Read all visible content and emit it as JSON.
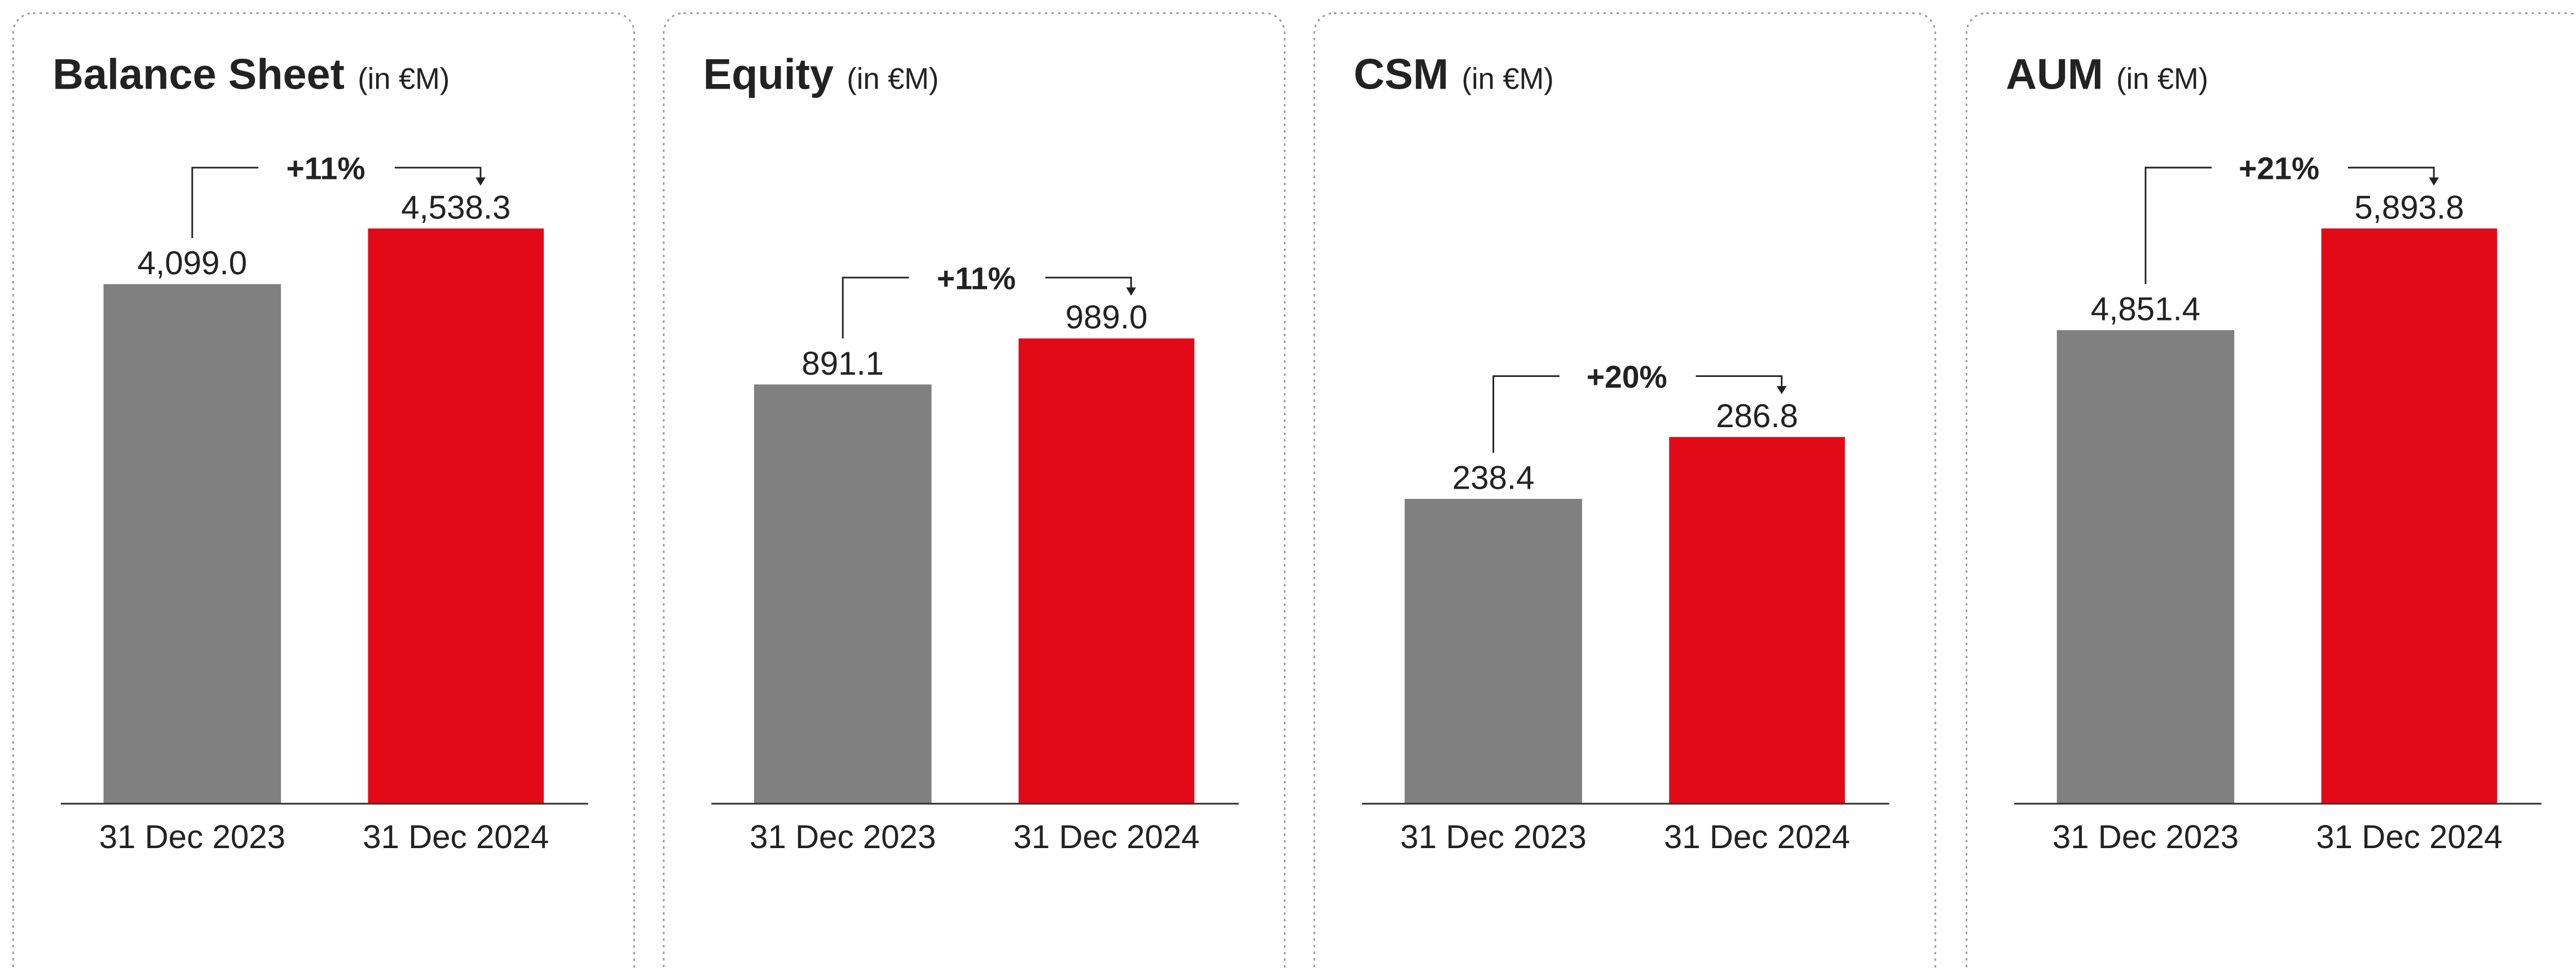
{
  "chart_data": [
    {
      "type": "bar",
      "title": "Balance Sheet",
      "subtitle": "(in €M)",
      "annotation": "+11%",
      "categories": [
        "31 Dec 2023",
        "31 Dec 2024"
      ],
      "values": [
        4099.0,
        4538.3
      ],
      "value_labels": [
        "4,099.0",
        "4,538.3"
      ],
      "colors": [
        "#808080",
        "#e30a18"
      ],
      "ylim": [
        0,
        5044
      ]
    },
    {
      "type": "bar",
      "title": "Equity",
      "subtitle": "(in €M)",
      "annotation": "+11%",
      "categories": [
        "31 Dec 2023",
        "31 Dec 2024"
      ],
      "values": [
        891.1,
        989.0
      ],
      "value_labels": [
        "891.1",
        "989.0"
      ],
      "colors": [
        "#808080",
        "#e30a18"
      ],
      "ylim": [
        0,
        1359
      ]
    },
    {
      "type": "bar",
      "title": "CSM",
      "subtitle": "(in €M)",
      "annotation": "+20%",
      "categories": [
        "31 Dec 2023",
        "31 Dec 2024"
      ],
      "values": [
        238.4,
        286.8
      ],
      "value_labels": [
        "238.4",
        "286.8"
      ],
      "colors": [
        "#808080",
        "#e30a18"
      ],
      "ylim": [
        0,
        500
      ]
    },
    {
      "type": "bar",
      "title": "AUM",
      "subtitle": "(in €M)",
      "annotation": "+21%",
      "categories": [
        "31 Dec 2023",
        "31 Dec 2024"
      ],
      "values": [
        4851.4,
        5893.8
      ],
      "value_labels": [
        "4,851.4",
        "5,893.8"
      ],
      "colors": [
        "#808080",
        "#e30a18"
      ],
      "ylim": [
        0,
        6550
      ]
    }
  ]
}
